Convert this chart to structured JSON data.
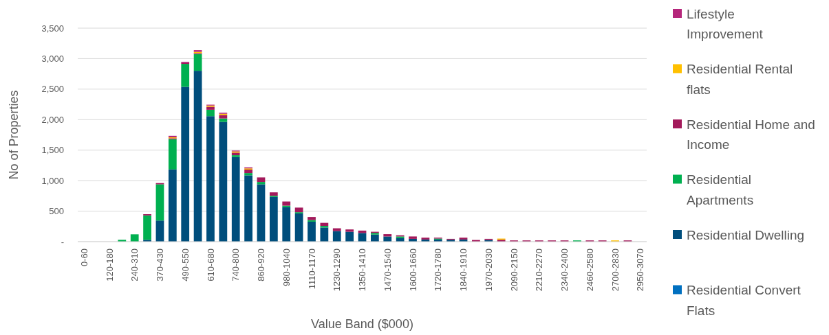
{
  "chart_data": {
    "type": "bar",
    "stacked": true,
    "xlabel": "Value Band ($000)",
    "ylabel": "No of Properties",
    "categories": [
      "0-60",
      null,
      "120-180",
      null,
      "240-310",
      null,
      "370-430",
      null,
      "490-550",
      null,
      "610-680",
      null,
      "740-800",
      null,
      "860-920",
      null,
      "980-1040",
      null,
      "1110-1170",
      null,
      "1230-1290",
      null,
      "1350-1410",
      null,
      "1470-1540",
      null,
      "1600-1660",
      null,
      "1720-1780",
      null,
      "1840-1910",
      null,
      "1970-2030",
      null,
      "2090-2150",
      null,
      "2210-2270",
      null,
      "2340-2400",
      null,
      "2460-2580",
      null,
      "2700-2830",
      null,
      "2950-3070"
    ],
    "series": [
      {
        "name": "Residential Convert Flats",
        "color": "#0070c0",
        "values": [
          0,
          0,
          0,
          0,
          0,
          0,
          0,
          0,
          0,
          0,
          0,
          0,
          0,
          0,
          0,
          0,
          0,
          0,
          0,
          0,
          0,
          0,
          0,
          0,
          0,
          0,
          0,
          0,
          0,
          0,
          0,
          0,
          0,
          0,
          0,
          0,
          0,
          0,
          0,
          0,
          0,
          0,
          0,
          0,
          0
        ]
      },
      {
        "name": "Residential Dwelling",
        "color": "#004e7c",
        "values": [
          0,
          0,
          0,
          0,
          0,
          30,
          346,
          1184,
          2538,
          2801,
          2057,
          1963,
          1387,
          1087,
          940,
          733,
          564,
          462,
          327,
          231,
          173,
          162,
          142,
          116,
          85,
          58,
          46,
          35,
          35,
          31,
          35,
          0,
          27,
          0,
          0,
          0,
          0,
          0,
          0,
          0,
          0,
          0,
          0,
          0,
          0
        ]
      },
      {
        "name": "Residential Apartments",
        "color": "#00b050",
        "values": [
          0,
          0,
          0,
          30,
          120,
          400,
          594,
          496,
          376,
          275,
          105,
          56,
          30,
          37,
          38,
          19,
          26,
          20,
          27,
          27,
          0,
          0,
          0,
          27,
          0,
          27,
          0,
          0,
          15,
          0,
          0,
          0,
          0,
          0,
          0,
          0,
          0,
          0,
          0,
          20,
          0,
          0,
          0,
          0,
          0
        ]
      },
      {
        "name": "Residential Home and Income",
        "color": "#a3195b",
        "values": [
          0,
          0,
          0,
          0,
          0,
          20,
          20,
          15,
          20,
          15,
          49,
          57,
          42,
          57,
          75,
          56,
          68,
          76,
          50,
          50,
          46,
          38,
          39,
          19,
          38,
          19,
          39,
          30,
          15,
          15,
          30,
          27,
          19,
          31,
          20,
          20,
          20,
          20,
          20,
          0,
          20,
          20,
          0,
          20,
          0
        ]
      },
      {
        "name": "Residential Rental flats",
        "color": "#ffc000",
        "values": [
          0,
          0,
          0,
          0,
          0,
          0,
          0,
          15,
          0,
          20,
          20,
          20,
          20,
          20,
          0,
          0,
          0,
          0,
          0,
          0,
          0,
          0,
          0,
          0,
          0,
          0,
          0,
          0,
          0,
          0,
          0,
          0,
          0,
          19,
          0,
          0,
          0,
          0,
          0,
          0,
          0,
          0,
          20,
          0,
          0
        ]
      },
      {
        "name": "Lifestyle Improvement",
        "color": "#b5267b",
        "values": [
          0,
          0,
          0,
          0,
          0,
          0,
          0,
          25,
          15,
          28,
          14,
          17,
          14,
          17,
          0,
          0,
          0,
          0,
          0,
          0,
          0,
          0,
          0,
          0,
          0,
          0,
          0,
          0,
          0,
          0,
          0,
          0,
          0,
          0,
          0,
          0,
          0,
          0,
          0,
          0,
          0,
          0,
          0,
          0,
          0
        ]
      }
    ],
    "ylim": [
      0,
      3500
    ],
    "yticks": [
      {
        "value": 0,
        "label": "-"
      },
      {
        "value": 500,
        "label": "500"
      },
      {
        "value": 1000,
        "label": "1,000"
      },
      {
        "value": 1500,
        "label": "1,500"
      },
      {
        "value": 2000,
        "label": "2,000"
      },
      {
        "value": 2500,
        "label": "2,500"
      },
      {
        "value": 3000,
        "label": "3,000"
      },
      {
        "value": 3500,
        "label": "3,500"
      }
    ],
    "grid": "y",
    "legend": "right"
  }
}
